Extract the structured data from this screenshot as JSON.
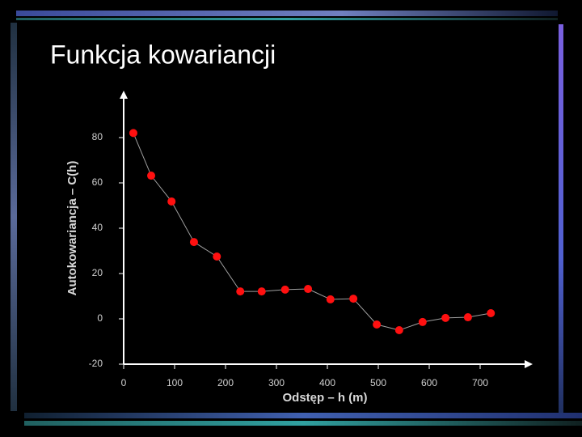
{
  "title": "Funkcja kowariancji",
  "chart_data": {
    "type": "line",
    "x_label": "Odstęp – h (m)",
    "y_label": "Autokowariancja – C(h)",
    "x": [
      19,
      54,
      94,
      138,
      183,
      229,
      271,
      317,
      362,
      406,
      451,
      497,
      541,
      587,
      632,
      676,
      721
    ],
    "series": [
      {
        "color": "#ff1010",
        "line_color": "#a0a0a0",
        "values": [
          82,
          63.2,
          51.8,
          33.9,
          27.5,
          12.1,
          12.1,
          12.9,
          13.2,
          8.6,
          8.9,
          -2.5,
          -5,
          -1.4,
          0.4,
          0.7,
          2.5
        ]
      }
    ],
    "xlim": [
      0,
      800
    ],
    "ylim": [
      -20,
      100
    ],
    "xticks": [
      0,
      100,
      200,
      300,
      400,
      500,
      600,
      700
    ],
    "yticks": [
      -20,
      0,
      20,
      40,
      60,
      80
    ],
    "axis_color": "#ffffff"
  }
}
